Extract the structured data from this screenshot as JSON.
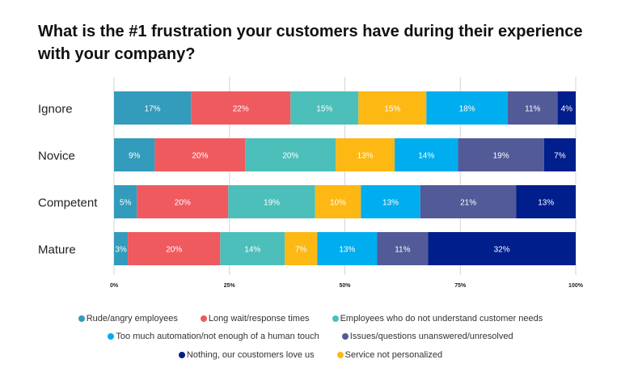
{
  "chart_data": {
    "type": "bar",
    "orientation": "horizontal",
    "stacked": true,
    "title": "What is the #1 frustration your customers have during their experience with your company?",
    "categories": [
      "Ignore",
      "Novice",
      "Competent",
      "Mature"
    ],
    "series": [
      {
        "name": "Rude/angry employees",
        "color": "#339BBB",
        "values": [
          17,
          9,
          5,
          3
        ]
      },
      {
        "name": "Long wait/response times",
        "color": "#EF5A5F",
        "values": [
          22,
          20,
          20,
          20
        ]
      },
      {
        "name": "Employees who do not understand customer needs",
        "color": "#4CBFBA",
        "values": [
          15,
          20,
          19,
          14
        ]
      },
      {
        "name": "Service not personalized",
        "color": "#FDB813",
        "values": [
          15,
          13,
          10,
          7
        ]
      },
      {
        "name": "Too much automation/not enough of a human touch",
        "color": "#00AEEF",
        "values": [
          18,
          14,
          13,
          13
        ]
      },
      {
        "name": "Issues/questions unanswered/unresolved",
        "color": "#525A98",
        "values": [
          11,
          19,
          21,
          11
        ]
      },
      {
        "name": "Nothing, our coustomers love us",
        "color": "#001E8C",
        "values": [
          4,
          7,
          13,
          32
        ]
      }
    ],
    "value_suffix": "%",
    "xlim": [
      0,
      100
    ],
    "xticks": [
      "0%",
      "25%",
      "50%",
      "75%",
      "100%"
    ],
    "grid": true,
    "legend_position": "bottom",
    "legend_rows": [
      [
        "Rude/angry employees",
        "Long wait/response times",
        "Employees who do not understand customer needs"
      ],
      [
        "Too much automation/not enough of a human touch",
        "Issues/questions unanswered/unresolved"
      ],
      [
        "Nothing, our coustomers love us",
        "Service not personalized"
      ]
    ]
  }
}
